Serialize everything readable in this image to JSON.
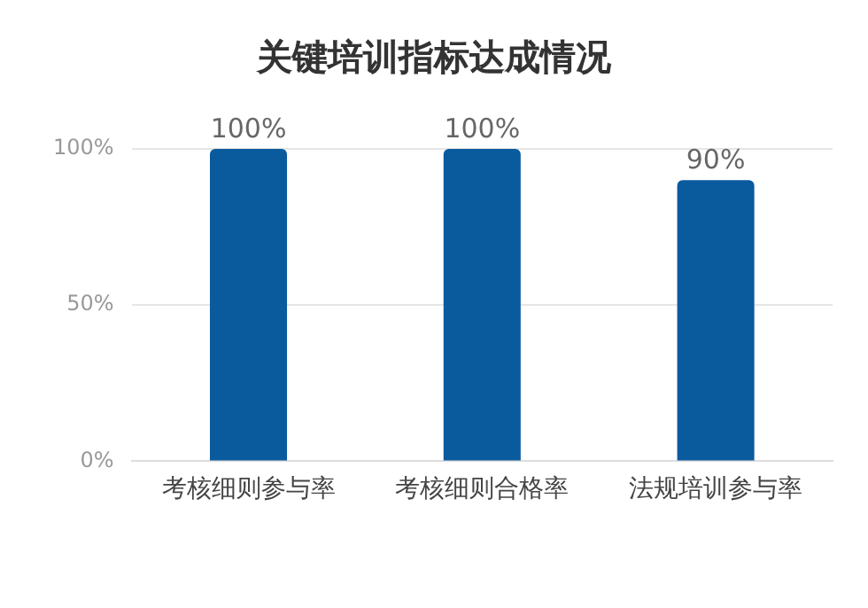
{
  "chart_data": {
    "type": "bar",
    "title": "关键培训指标达成情况",
    "categories": [
      "考核细则参与率",
      "考核细则合格率",
      "法规培训参与率"
    ],
    "values": [
      100,
      100,
      90
    ],
    "value_labels": [
      "100%",
      "100%",
      "90%"
    ],
    "color": "#0a5a9e",
    "ylim": [
      0,
      100
    ],
    "yticks": [
      {
        "value": 0,
        "label": "0%"
      },
      {
        "value": 50,
        "label": "50%"
      },
      {
        "value": 100,
        "label": "100%"
      }
    ],
    "grid": "y",
    "legend": false
  }
}
